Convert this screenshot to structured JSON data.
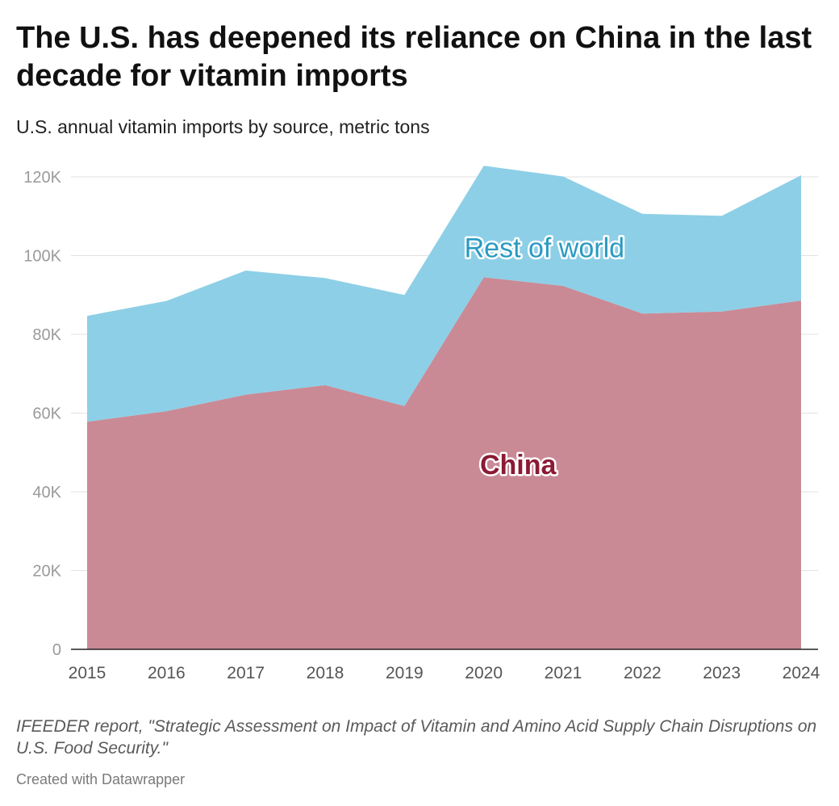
{
  "header": {
    "title": "The U.S. has deepened its reliance on China in the last decade for vitamin imports",
    "subtitle": "U.S. annual vitamin imports by source, metric tons"
  },
  "footer": {
    "source": "IFEEDER report, \"Strategic Assessment on Impact of Vitamin and Amino Acid Supply Chain Disruptions on U.S. Food Security.\"",
    "credit": "Created with Datawrapper"
  },
  "chart_data": {
    "type": "area",
    "stacked": true,
    "categories": [
      "2015",
      "2016",
      "2017",
      "2018",
      "2019",
      "2020",
      "2021",
      "2022",
      "2023",
      "2024"
    ],
    "series": [
      {
        "name": "China",
        "values": [
          57800,
          60500,
          64700,
          67100,
          61800,
          94500,
          92300,
          85300,
          85800,
          88600
        ],
        "color": "#c98a96",
        "label_color": "#8b1a33"
      },
      {
        "name": "Rest of world",
        "values": [
          26900,
          28000,
          31500,
          27200,
          28200,
          28300,
          27800,
          25300,
          24300,
          31800
        ],
        "color": "#8dcfe6",
        "label_color": "#2a9ac2"
      }
    ],
    "ylim": [
      0,
      120000
    ],
    "yticks": [
      0,
      20000,
      40000,
      60000,
      80000,
      100000,
      120000
    ],
    "ytick_labels": [
      "0",
      "20K",
      "40K",
      "60K",
      "80K",
      "100K",
      "120K"
    ],
    "grid": true,
    "legend": "inline labels"
  }
}
